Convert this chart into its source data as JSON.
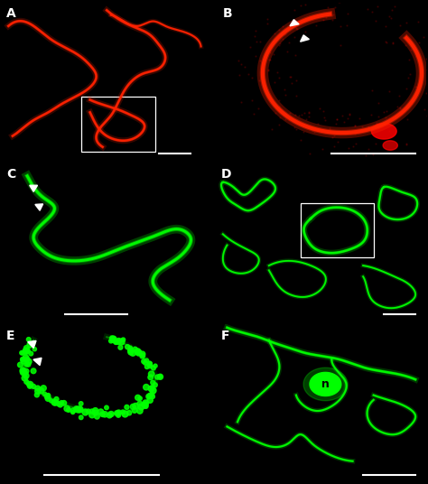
{
  "panels": [
    "A",
    "B",
    "C",
    "D",
    "E",
    "F"
  ],
  "layout": {
    "nrows": 3,
    "ncols": 2,
    "figsize": [
      4.74,
      5.36
    ],
    "dpi": 100
  },
  "red_color": "#ff2200",
  "green_color": "#00ff00",
  "background_color": "#000000",
  "label_color": "#ffffff",
  "label_fontsize": 10,
  "scale_bar_color": "#ffffff"
}
